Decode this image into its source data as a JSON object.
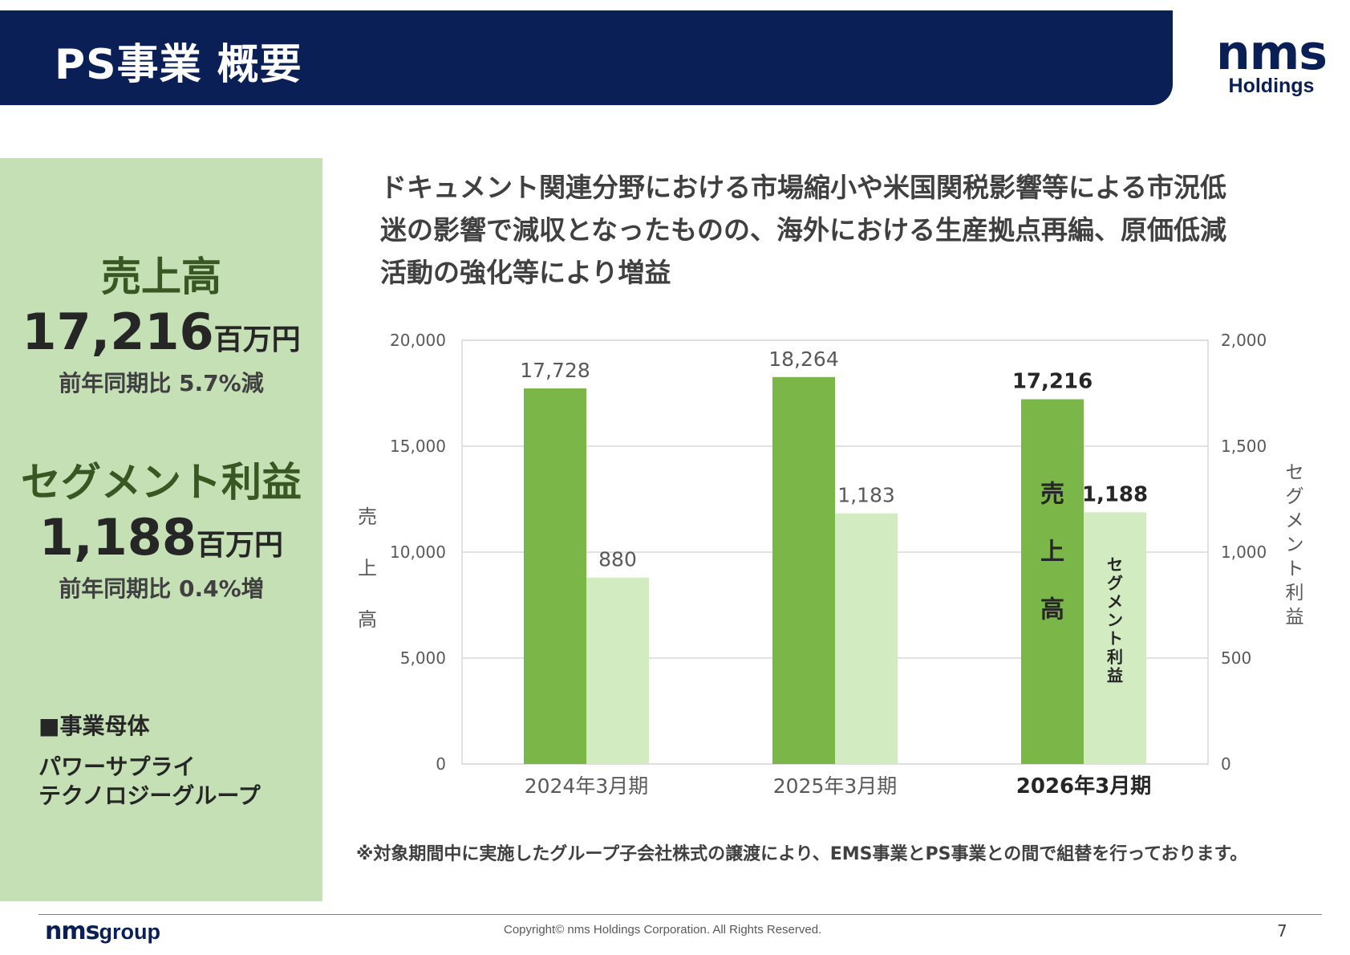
{
  "header": {
    "title": "PS事業 概要"
  },
  "logo": {
    "mark": "nms",
    "sub": "Holdings"
  },
  "summary": {
    "sales_label": "売上高",
    "sales_value": "17,216",
    "sales_unit": "百万円",
    "sales_yoy": "前年同期比 5.7%減",
    "profit_label": "セグメント利益",
    "profit_value": "1,188",
    "profit_unit": "百万円",
    "profit_yoy": "前年同期比 0.4%増",
    "parent_heading": "■事業母体",
    "parent_line1": "パワーサプライ",
    "parent_line2": "テクノロジーグループ"
  },
  "description": [
    "ドキュメント関連分野における市場縮小や米国関税影響等による市況低",
    "迷の影響で減収となったものの、海外における生産拠点再編、原価低減",
    "活動の強化等により増益"
  ],
  "chart_data": {
    "type": "bar",
    "categories": [
      "2024年3月期",
      "2025年3月期",
      "2026年3月期"
    ],
    "series": [
      {
        "name": "売上高",
        "values": [
          17728,
          18264,
          17216
        ],
        "labels": [
          "17,728",
          "18,264",
          "17,216"
        ],
        "axis": "left",
        "color": "#7ab648"
      },
      {
        "name": "セグメント利益",
        "values": [
          880,
          1183,
          1188
        ],
        "labels": [
          "880",
          "1,183",
          "1,188"
        ],
        "axis": "right",
        "color": "#d2ebc0"
      }
    ],
    "ylabel_left": "売上高",
    "ylabel_right": "セグメント利益",
    "ylim_left": [
      0,
      20000
    ],
    "ylim_right": [
      0,
      2000
    ],
    "yticks_left": [
      "0",
      "5,000",
      "10,000",
      "15,000",
      "20,000"
    ],
    "yticks_right": [
      "0",
      "500",
      "1,000",
      "1,500",
      "2,000"
    ],
    "highlight_category": 2,
    "inbar_labels": {
      "sales": "売上高",
      "profit": "セグメント利益"
    },
    "grid": true
  },
  "note": "※対象期間中に実施したグループ子会社株式の譲渡により、EMS事業とPS事業との間で組替を行っております。",
  "footer": {
    "logo_mark": "nms",
    "logo_group": "group",
    "copyright": "Copyright© nms Holdings Corporation. All Rights Reserved.",
    "page": "7"
  }
}
